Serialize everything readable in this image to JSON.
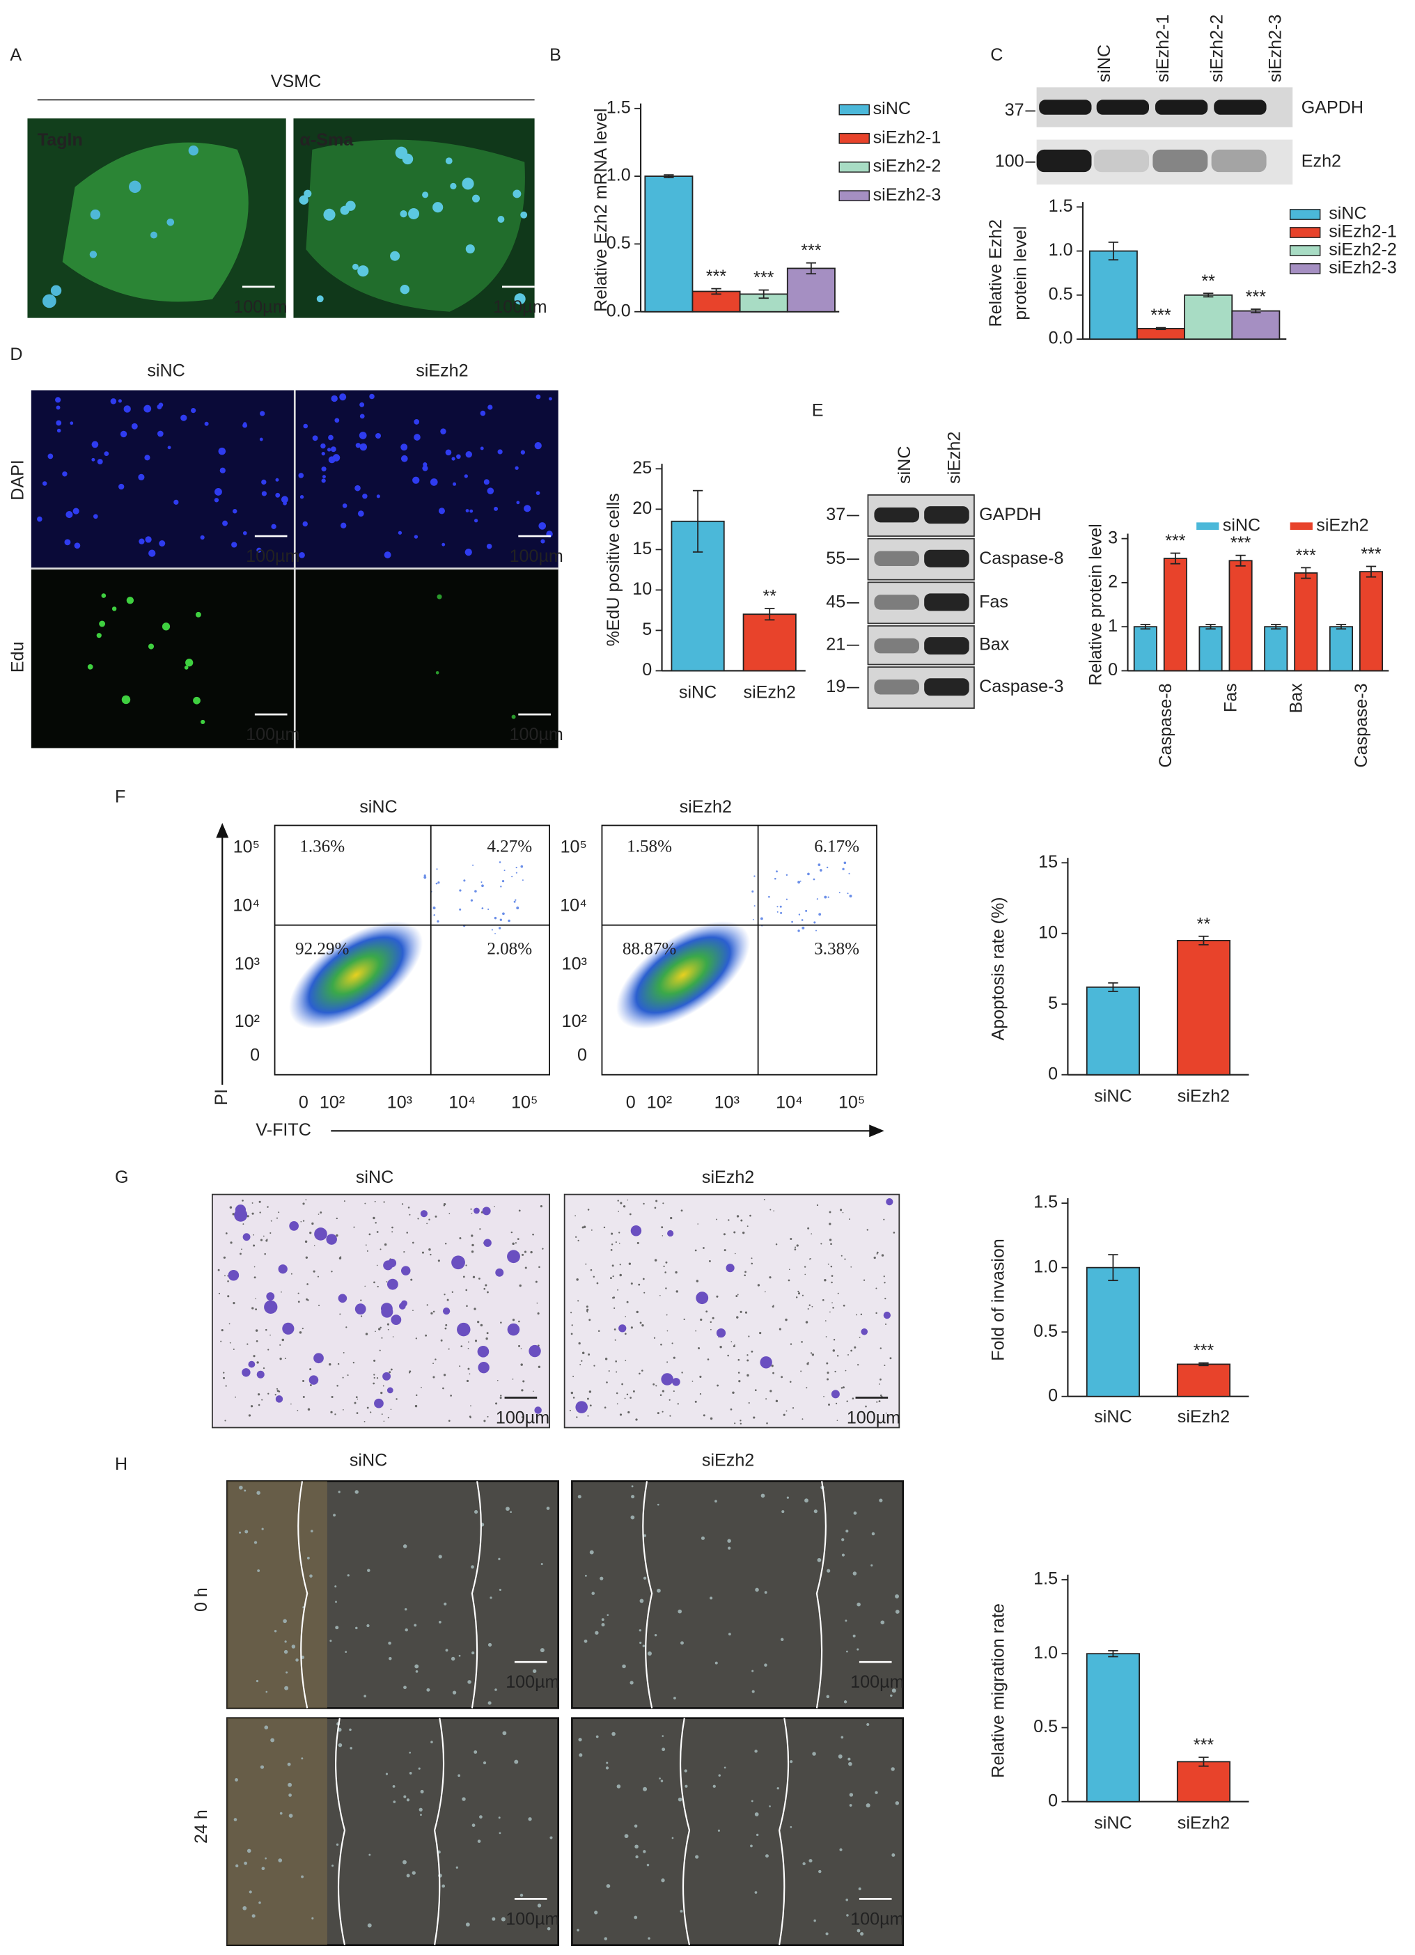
{
  "figure": {
    "panel_labels": [
      "A",
      "B",
      "C",
      "D",
      "E",
      "F",
      "G",
      "H"
    ],
    "scale_bar": "100µm",
    "A": {
      "title": "VSMC",
      "stains": [
        "Tagln",
        "α-Sma"
      ]
    },
    "C_blot": {
      "lanes": [
        "siNC",
        "siEzh2-1",
        "siEzh2-2",
        "siEzh2-3"
      ],
      "markers": [
        "37",
        "100"
      ],
      "proteins": [
        "GAPDH",
        "Ezh2"
      ]
    },
    "D": {
      "columns": [
        "siNC",
        "siEzh2"
      ],
      "rows": [
        "DAPI",
        "Edu"
      ]
    },
    "E_blot": {
      "lanes": [
        "siNC",
        "siEzh2"
      ],
      "markers": [
        "37",
        "55",
        "45",
        "21",
        "19"
      ],
      "proteins": [
        "GAPDH",
        "Caspase-8",
        "Fas",
        "Bax",
        "Caspase-3"
      ]
    },
    "F": {
      "plots": [
        {
          "title": "siNC",
          "quadrants": [
            "1.36%",
            "4.27%",
            "92.29%",
            "2.08%"
          ]
        },
        {
          "title": "siEzh2",
          "quadrants": [
            "1.58%",
            "6.17%",
            "88.87%",
            "3.38%"
          ]
        }
      ],
      "xticks": [
        "0",
        "10²",
        "10³",
        "10⁴",
        "10⁵"
      ],
      "yticks": [
        "10⁵",
        "10⁴",
        "10³",
        "10²",
        "0"
      ],
      "xlabel": "V-FITC",
      "ylabel": "PI"
    },
    "G": {
      "columns": [
        "siNC",
        "siEzh2"
      ]
    },
    "H": {
      "columns": [
        "siNC",
        "siEzh2"
      ],
      "rows": [
        "0 h",
        "24 h"
      ]
    }
  },
  "chart_data": [
    {
      "type": "bar",
      "ylabel": [
        "Relative Ezh2 mRNA level"
      ],
      "ylim": [
        0,
        1.5
      ],
      "yticks": [
        {
          "value": 0,
          "label": "0.0"
        },
        0.5,
        {
          "value": 1,
          "label": "1.0"
        },
        1.5
      ],
      "series": [
        {
          "name": "siNC",
          "color": "#4bb8d9",
          "values": [
            1.0
          ],
          "errors": [
            0.01
          ]
        },
        {
          "name": "siEzh2-1",
          "color": "#e8432b",
          "values": [
            0.15
          ],
          "errors": [
            0.02
          ],
          "significance": [
            "***"
          ]
        },
        {
          "name": "siEzh2-2",
          "color": "#a8dcc4",
          "values": [
            0.13
          ],
          "errors": [
            0.03
          ],
          "significance": [
            "***"
          ]
        },
        {
          "name": "siEzh2-3",
          "color": "#a58fc2",
          "values": [
            0.32
          ],
          "errors": [
            0.04
          ],
          "significance": [
            "***"
          ]
        }
      ]
    },
    {
      "type": "bar",
      "ylabel": [
        "Relative Ezh2",
        "protein level"
      ],
      "ylim": [
        0,
        1.5
      ],
      "yticks": [
        {
          "value": 0,
          "label": "0.0"
        },
        0.5,
        {
          "value": 1,
          "label": "1.0"
        },
        1.5
      ],
      "series": [
        {
          "name": "siNC",
          "color": "#4bb8d9",
          "values": [
            1.0
          ],
          "errors": [
            0.1
          ]
        },
        {
          "name": "siEzh2-1",
          "color": "#e8432b",
          "values": [
            0.12
          ],
          "errors": [
            0.01
          ],
          "significance": [
            "***"
          ]
        },
        {
          "name": "siEzh2-2",
          "color": "#a8dcc4",
          "values": [
            0.5
          ],
          "errors": [
            0.02
          ],
          "significance": [
            "**"
          ]
        },
        {
          "name": "siEzh2-3",
          "color": "#a58fc2",
          "values": [
            0.32
          ],
          "errors": [
            0.02
          ],
          "significance": [
            "***"
          ]
        }
      ]
    },
    {
      "type": "bar",
      "ylabel": [
        "%EdU positive cells"
      ],
      "ylim": [
        0,
        25
      ],
      "yticks": [
        0,
        5,
        10,
        15,
        20,
        25
      ],
      "categories": [
        "siNC",
        "siEzh2"
      ],
      "values": [
        18.5,
        7.0
      ],
      "errors": [
        3.8,
        0.7
      ],
      "colors": [
        "#4bb8d9",
        "#e8432b"
      ],
      "significance": [
        null,
        "**"
      ]
    },
    {
      "type": "bar",
      "ylabel": [
        "Relative protein level"
      ],
      "ylim": [
        0,
        3
      ],
      "yticks": [
        0,
        1,
        2,
        3
      ],
      "categories": [
        "Caspase-8",
        "Fas",
        "Bax",
        "Caspase-3"
      ],
      "series": [
        {
          "name": "siNC",
          "color": "#4bb8d9",
          "values": [
            1,
            1,
            1,
            1
          ],
          "errors": [
            0.05,
            0.05,
            0.05,
            0.05
          ]
        },
        {
          "name": "siEzh2",
          "color": "#e8432b",
          "values": [
            2.55,
            2.5,
            2.22,
            2.25
          ],
          "errors": [
            0.12,
            0.12,
            0.12,
            0.12
          ],
          "significance": [
            "***",
            "***",
            "***",
            "***"
          ]
        }
      ]
    },
    {
      "type": "bar",
      "ylabel": [
        "Apoptosis rate (%)"
      ],
      "ylim": [
        0,
        15
      ],
      "yticks": [
        0,
        5,
        10,
        15
      ],
      "categories": [
        "siNC",
        "siEzh2"
      ],
      "values": [
        6.2,
        9.5
      ],
      "errors": [
        0.3,
        0.3
      ],
      "colors": [
        "#4bb8d9",
        "#e8432b"
      ],
      "significance": [
        null,
        "**"
      ]
    },
    {
      "type": "bar",
      "ylabel": [
        "Fold of invasion"
      ],
      "ylim": [
        0,
        1.5
      ],
      "yticks": [
        0,
        0.5,
        {
          "value": 1,
          "label": "1.0"
        },
        1.5
      ],
      "categories": [
        "siNC",
        "siEzh2"
      ],
      "values": [
        1.0,
        0.25
      ],
      "errors": [
        0.1,
        0.01
      ],
      "colors": [
        "#4bb8d9",
        "#e8432b"
      ],
      "significance": [
        null,
        "***"
      ]
    },
    {
      "type": "bar",
      "ylabel": [
        "Relative migration rate"
      ],
      "ylim": [
        0,
        1.5
      ],
      "yticks": [
        0,
        0.5,
        {
          "value": 1,
          "label": "1.0"
        },
        1.5
      ],
      "categories": [
        "siNC",
        "siEzh2"
      ],
      "values": [
        1.0,
        0.27
      ],
      "errors": [
        0.02,
        0.03
      ],
      "colors": [
        "#4bb8d9",
        "#e8432b"
      ],
      "significance": [
        null,
        "***"
      ]
    }
  ]
}
